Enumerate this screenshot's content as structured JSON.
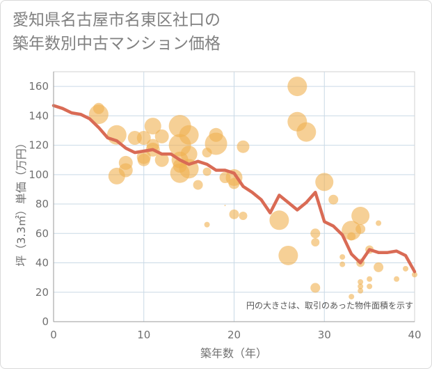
{
  "title": "愛知県名古屋市名東区社口の\n築年数別中古マンション価格",
  "chart_data": {
    "type": "scatter",
    "xlabel": "築年数（年）",
    "ylabel": "坪（3.3㎡）単価（万円）",
    "xlim": [
      0,
      40
    ],
    "ylim": [
      0,
      170
    ],
    "xticks": [
      0,
      10,
      20,
      30,
      40
    ],
    "yticks": [
      0,
      20,
      40,
      60,
      80,
      100,
      120,
      140,
      160
    ],
    "note": "円の大きさは、取引のあった物件面積を示す",
    "grid": true,
    "colors": {
      "bubble": "#f0b050",
      "line": "#d96b55",
      "grid": "#c9d9e6",
      "axis": "#999999"
    },
    "bubbles": [
      {
        "x": 5,
        "y": 145,
        "size": 8
      },
      {
        "x": 5,
        "y": 141,
        "size": 14
      },
      {
        "x": 7,
        "y": 127,
        "size": 14
      },
      {
        "x": 7,
        "y": 99,
        "size": 12
      },
      {
        "x": 8,
        "y": 108,
        "size": 10
      },
      {
        "x": 8,
        "y": 103,
        "size": 10
      },
      {
        "x": 9,
        "y": 125,
        "size": 10
      },
      {
        "x": 10,
        "y": 125,
        "size": 10
      },
      {
        "x": 10,
        "y": 112,
        "size": 10
      },
      {
        "x": 10,
        "y": 110,
        "size": 9
      },
      {
        "x": 11,
        "y": 133,
        "size": 12
      },
      {
        "x": 11,
        "y": 120,
        "size": 9
      },
      {
        "x": 11,
        "y": 117,
        "size": 10
      },
      {
        "x": 12,
        "y": 126,
        "size": 10
      },
      {
        "x": 12,
        "y": 110,
        "size": 10
      },
      {
        "x": 14,
        "y": 133,
        "size": 16
      },
      {
        "x": 14,
        "y": 120,
        "size": 16
      },
      {
        "x": 14,
        "y": 110,
        "size": 12
      },
      {
        "x": 14,
        "y": 101,
        "size": 14
      },
      {
        "x": 14,
        "y": 106,
        "size": 10
      },
      {
        "x": 15,
        "y": 127,
        "size": 14
      },
      {
        "x": 15,
        "y": 114,
        "size": 12
      },
      {
        "x": 15,
        "y": 104,
        "size": 14
      },
      {
        "x": 16,
        "y": 93,
        "size": 7
      },
      {
        "x": 17,
        "y": 115,
        "size": 7
      },
      {
        "x": 17,
        "y": 102,
        "size": 6
      },
      {
        "x": 17,
        "y": 66,
        "size": 4
      },
      {
        "x": 18,
        "y": 127,
        "size": 10
      },
      {
        "x": 18,
        "y": 121,
        "size": 16
      },
      {
        "x": 19,
        "y": 98,
        "size": 8
      },
      {
        "x": 19,
        "y": 79,
        "size": 1
      },
      {
        "x": 20,
        "y": 98,
        "size": 12
      },
      {
        "x": 20,
        "y": 94,
        "size": 8
      },
      {
        "x": 20,
        "y": 73,
        "size": 7
      },
      {
        "x": 21,
        "y": 119,
        "size": 9
      },
      {
        "x": 21,
        "y": 72,
        "size": 6
      },
      {
        "x": 25,
        "y": 69,
        "size": 14
      },
      {
        "x": 26,
        "y": 45,
        "size": 14
      },
      {
        "x": 27,
        "y": 160,
        "size": 14
      },
      {
        "x": 27,
        "y": 136,
        "size": 14
      },
      {
        "x": 28,
        "y": 129,
        "size": 14
      },
      {
        "x": 29,
        "y": 60,
        "size": 7
      },
      {
        "x": 29,
        "y": 54,
        "size": 6
      },
      {
        "x": 29,
        "y": 23,
        "size": 7
      },
      {
        "x": 30,
        "y": 95,
        "size": 13
      },
      {
        "x": 31,
        "y": 83,
        "size": 7
      },
      {
        "x": 32,
        "y": 44,
        "size": 4
      },
      {
        "x": 32,
        "y": 39,
        "size": 4
      },
      {
        "x": 33,
        "y": 62,
        "size": 14
      },
      {
        "x": 33,
        "y": 58,
        "size": 6
      },
      {
        "x": 33,
        "y": 17,
        "size": 4
      },
      {
        "x": 34,
        "y": 72,
        "size": 13
      },
      {
        "x": 34,
        "y": 63,
        "size": 7
      },
      {
        "x": 34,
        "y": 40,
        "size": 6
      },
      {
        "x": 34,
        "y": 27,
        "size": 4
      },
      {
        "x": 34,
        "y": 24,
        "size": 4
      },
      {
        "x": 34,
        "y": 21,
        "size": 4
      },
      {
        "x": 35,
        "y": 49,
        "size": 6
      },
      {
        "x": 35,
        "y": 29,
        "size": 4
      },
      {
        "x": 35,
        "y": 24,
        "size": 4
      },
      {
        "x": 36,
        "y": 67,
        "size": 4
      },
      {
        "x": 36,
        "y": 37,
        "size": 7
      },
      {
        "x": 38,
        "y": 29,
        "size": 4
      },
      {
        "x": 39,
        "y": 36,
        "size": 4
      },
      {
        "x": 40,
        "y": 32,
        "size": 4
      }
    ],
    "series": [
      {
        "type": "line",
        "x": [
          0,
          1,
          2,
          3,
          4,
          5,
          6,
          7,
          8,
          9,
          10,
          11,
          12,
          13,
          14,
          15,
          16,
          17,
          18,
          19,
          20,
          21,
          22,
          23,
          24,
          25,
          26,
          27,
          28,
          29,
          30,
          31,
          32,
          33,
          34,
          35,
          36,
          37,
          38,
          39,
          40
        ],
        "y": [
          147,
          145,
          142,
          141,
          138,
          132,
          125,
          123,
          118,
          115,
          116,
          117,
          114,
          114,
          110,
          107,
          109,
          107,
          103,
          103,
          101,
          92,
          88,
          83,
          74,
          86,
          81,
          76,
          81,
          88,
          68,
          65,
          59,
          46,
          40,
          49,
          47,
          47,
          48,
          45,
          34
        ]
      }
    ]
  }
}
